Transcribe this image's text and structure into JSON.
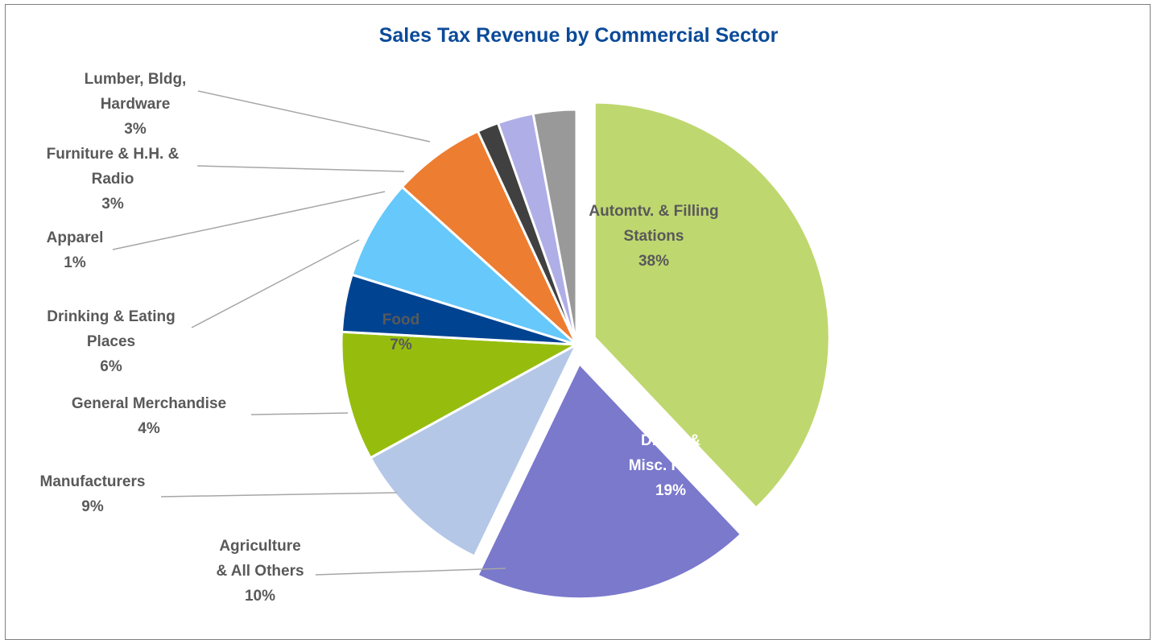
{
  "chart_data": {
    "type": "pie",
    "title": "Sales Tax Revenue by Commercial Sector",
    "series": [
      {
        "label_lines": [
          "Automtv. & Filling",
          "Stations"
        ],
        "pct_label": "38%",
        "value": 38.5,
        "color": "#bfd76f",
        "text_color": "#595959",
        "exploded": true
      },
      {
        "label_lines": [
          "Drugs &",
          "Misc. Retail"
        ],
        "pct_label": "19%",
        "value": 19.5,
        "color": "#7b79cc",
        "text_color": "#ffffff",
        "exploded": true
      },
      {
        "label_lines": [
          "Agriculture",
          "& All Others"
        ],
        "pct_label": "10%",
        "value": 10.0,
        "color": "#b4c7e7",
        "text_color": "#595959",
        "exploded": false
      },
      {
        "label_lines": [
          "Manufacturers"
        ],
        "pct_label": "9%",
        "value": 9.0,
        "color": "#96bd0d",
        "text_color": "#595959",
        "exploded": false
      },
      {
        "label_lines": [
          "General Merchandise"
        ],
        "pct_label": "4%",
        "value": 4.0,
        "color": "#004391",
        "text_color": "#595959",
        "exploded": false
      },
      {
        "label_lines": [
          "Food"
        ],
        "pct_label": "7%",
        "value": 7.0,
        "color": "#66c8fb",
        "text_color": "#595959",
        "exploded": false
      },
      {
        "label_lines": [
          "Drinking & Eating",
          "Places"
        ],
        "pct_label": "6%",
        "value": 6.5,
        "color": "#ed7d31",
        "text_color": "#595959",
        "exploded": false
      },
      {
        "label_lines": [
          "Apparel"
        ],
        "pct_label": "1%",
        "value": 1.5,
        "color": "#404040",
        "text_color": "#595959",
        "exploded": false
      },
      {
        "label_lines": [
          "Furniture & H.H. &",
          "Radio"
        ],
        "pct_label": "3%",
        "value": 2.5,
        "color": "#b0aee6",
        "text_color": "#595959",
        "exploded": false
      },
      {
        "label_lines": [
          "Lumber, Bldg,",
          "Hardware"
        ],
        "pct_label": "3%",
        "value": 3.0,
        "color": "#999999",
        "text_color": "#595959",
        "exploded": false
      }
    ],
    "start_angle_deg": 0,
    "direction": "clockwise",
    "legend": "none",
    "leader_line_color": "#a6a6a6"
  }
}
